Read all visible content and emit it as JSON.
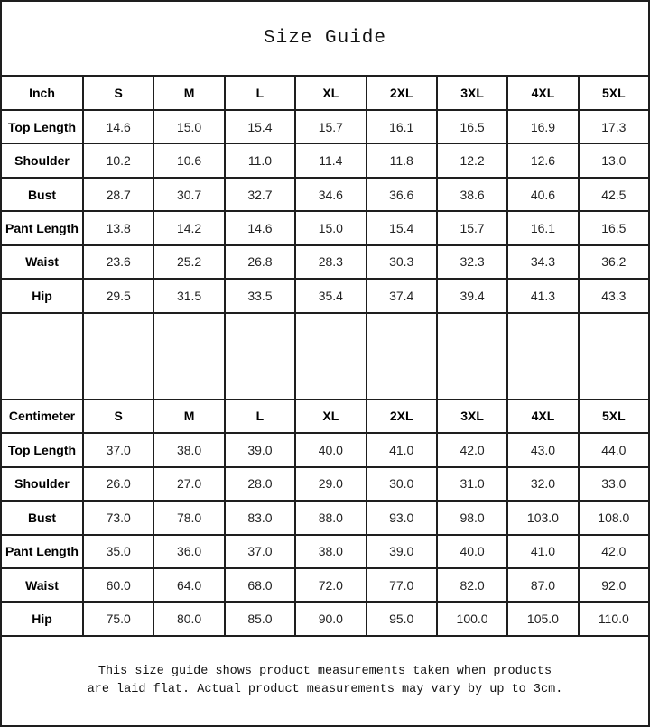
{
  "title": "Size Guide",
  "footer": {
    "lines": [
      "This size guide shows product measurements taken when products",
      "are laid flat. Actual product measurements may vary by up to 3cm."
    ]
  },
  "colors": {
    "border": "#1e1e1e",
    "text": "#111111",
    "background": "#ffffff"
  },
  "chart_data": {
    "type": "table",
    "title": "Size Guide",
    "note": "This size guide shows product measurements taken when products are laid flat. Actual product measurements may vary by up to 3cm.",
    "tables": [
      {
        "unit_label": "Inch",
        "columns": [
          "S",
          "M",
          "L",
          "XL",
          "2XL",
          "3XL",
          "4XL",
          "5XL"
        ],
        "rows": [
          {
            "label": "Top Length",
            "values": [
              "14.6",
              "15.0",
              "15.4",
              "15.7",
              "16.1",
              "16.5",
              "16.9",
              "17.3"
            ]
          },
          {
            "label": "Shoulder",
            "values": [
              "10.2",
              "10.6",
              "11.0",
              "11.4",
              "11.8",
              "12.2",
              "12.6",
              "13.0"
            ]
          },
          {
            "label": "Bust",
            "values": [
              "28.7",
              "30.7",
              "32.7",
              "34.6",
              "36.6",
              "38.6",
              "40.6",
              "42.5"
            ]
          },
          {
            "label": "Pant Length",
            "values": [
              "13.8",
              "14.2",
              "14.6",
              "15.0",
              "15.4",
              "15.7",
              "16.1",
              "16.5"
            ]
          },
          {
            "label": "Waist",
            "values": [
              "23.6",
              "25.2",
              "26.8",
              "28.3",
              "30.3",
              "32.3",
              "34.3",
              "36.2"
            ]
          },
          {
            "label": "Hip",
            "values": [
              "29.5",
              "31.5",
              "33.5",
              "35.4",
              "37.4",
              "39.4",
              "41.3",
              "43.3"
            ]
          }
        ]
      },
      {
        "unit_label": "Centimeter",
        "columns": [
          "S",
          "M",
          "L",
          "XL",
          "2XL",
          "3XL",
          "4XL",
          "5XL"
        ],
        "rows": [
          {
            "label": "Top Length",
            "values": [
              "37.0",
              "38.0",
              "39.0",
              "40.0",
              "41.0",
              "42.0",
              "43.0",
              "44.0"
            ]
          },
          {
            "label": "Shoulder",
            "values": [
              "26.0",
              "27.0",
              "28.0",
              "29.0",
              "30.0",
              "31.0",
              "32.0",
              "33.0"
            ]
          },
          {
            "label": "Bust",
            "values": [
              "73.0",
              "78.0",
              "83.0",
              "88.0",
              "93.0",
              "98.0",
              "103.0",
              "108.0"
            ]
          },
          {
            "label": "Pant Length",
            "values": [
              "35.0",
              "36.0",
              "37.0",
              "38.0",
              "39.0",
              "40.0",
              "41.0",
              "42.0"
            ]
          },
          {
            "label": "Waist",
            "values": [
              "60.0",
              "64.0",
              "68.0",
              "72.0",
              "77.0",
              "82.0",
              "87.0",
              "92.0"
            ]
          },
          {
            "label": "Hip",
            "values": [
              "75.0",
              "80.0",
              "85.0",
              "90.0",
              "95.0",
              "100.0",
              "105.0",
              "110.0"
            ]
          }
        ]
      }
    ]
  }
}
